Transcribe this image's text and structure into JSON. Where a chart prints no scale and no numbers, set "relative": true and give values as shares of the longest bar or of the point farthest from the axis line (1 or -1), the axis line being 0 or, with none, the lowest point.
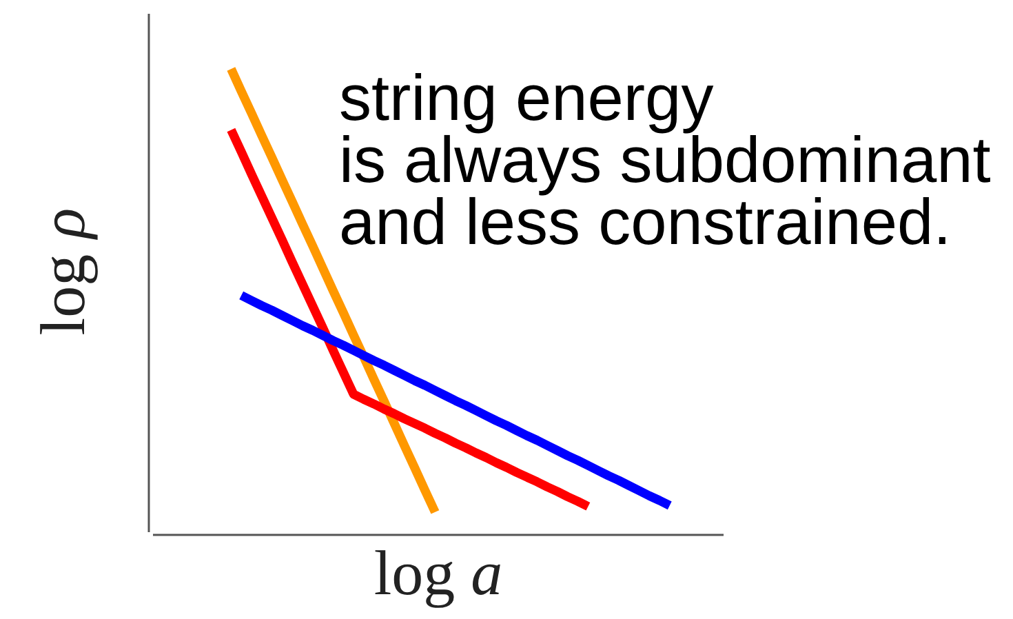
{
  "chart_data": {
    "type": "line",
    "relative": true,
    "xlabel": "log a",
    "ylabel": "log ρ",
    "categories": [
      null,
      null,
      null,
      null,
      null,
      null,
      null,
      null,
      null,
      null,
      null,
      null,
      null,
      null,
      null,
      null,
      null,
      null,
      null,
      null,
      null,
      null,
      null,
      null,
      null,
      null,
      null,
      null,
      null,
      null,
      null,
      null,
      null,
      null,
      null,
      null,
      null,
      null,
      null,
      null,
      null,
      null,
      null,
      null
    ],
    "series": [
      {
        "color": "#ff9800",
        "values": [
          1,
          0.952,
          0.905,
          0.857,
          0.81,
          0.762,
          0.715,
          0.667,
          0.62,
          0.572,
          0.524,
          0.477,
          0.429,
          0.382,
          0.334,
          0.287,
          0.239,
          0.191,
          0.144,
          0.096,
          0.049,
          null,
          null,
          null,
          null,
          null,
          null,
          null,
          null,
          null,
          null,
          null,
          null,
          null,
          null,
          null,
          null,
          null,
          null,
          null,
          null,
          null,
          null,
          null
        ]
      },
      {
        "color": "#ff0000",
        "values": [
          0.869,
          0.822,
          0.774,
          0.727,
          0.68,
          0.633,
          0.585,
          0.538,
          0.491,
          0.444,
          0.396,
          0.349,
          0.302,
          0.291,
          0.281,
          0.27,
          0.26,
          0.249,
          0.239,
          0.229,
          0.218,
          0.208,
          0.197,
          0.187,
          0.176,
          0.166,
          0.155,
          0.145,
          0.134,
          0.124,
          0.114,
          0.103,
          0.093,
          0.082,
          0.072,
          0.061,
          null,
          null,
          null,
          null,
          null,
          null,
          null,
          null
        ]
      },
      {
        "color": "#0000ff",
        "values": [
          null,
          0.514,
          0.503,
          0.492,
          0.482,
          0.471,
          0.46,
          0.449,
          0.439,
          0.428,
          0.417,
          0.407,
          0.396,
          0.385,
          0.374,
          0.364,
          0.353,
          0.342,
          0.331,
          0.321,
          0.31,
          0.299,
          0.288,
          0.278,
          0.267,
          0.256,
          0.245,
          0.235,
          0.224,
          0.213,
          0.203,
          0.192,
          0.181,
          0.17,
          0.16,
          0.149,
          0.138,
          0.127,
          0.117,
          0.106,
          0.095,
          0.084,
          0.074,
          0.063
        ]
      }
    ],
    "line_style": "solid",
    "annotations": [
      "string energy\nis always subdominant\nand less constrained."
    ]
  }
}
